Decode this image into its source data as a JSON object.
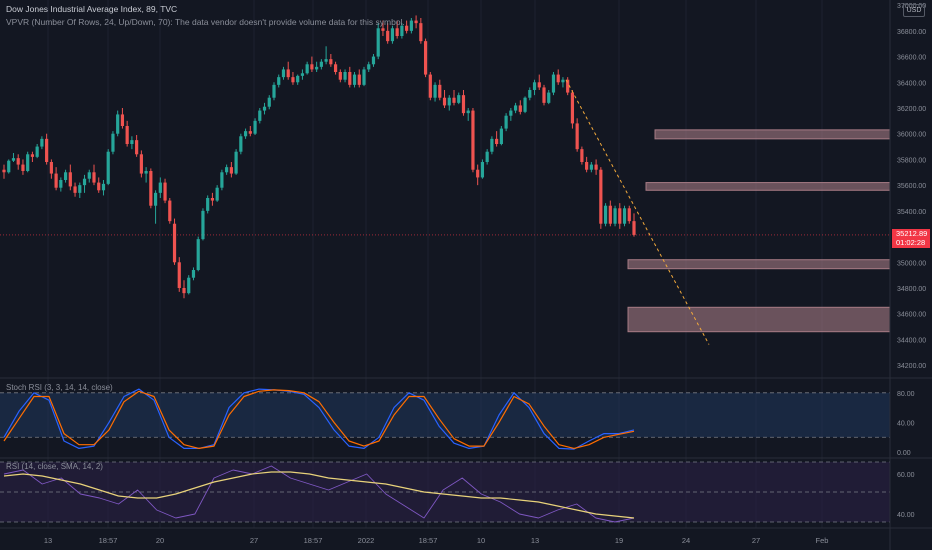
{
  "header": {
    "title": "Dow Jones Industrial Average Index, 89, TVC",
    "vpvr": "VPVR (Number Of Rows, 24, Up/Down, 70): The data vendor doesn't provide volume data for this symbol."
  },
  "currency": "USD",
  "last_price": {
    "value": "35212.89",
    "countdown": "01:02:28"
  },
  "indicators": {
    "stoch_label": "Stoch RSI (3, 3, 14, 14, close)",
    "rsi_label": "RSI (14, close, SMA, 14, 2)"
  },
  "colors": {
    "background": "#131722",
    "up": "#26a69a",
    "down": "#ef5350",
    "zone": "#b2838d",
    "stoch_k": "#2962ff",
    "stoch_d": "#ff6d00",
    "rsi": "#7e57c2",
    "rsi_ma": "#e8d27a",
    "trend": "#f2a93b"
  },
  "chart_data": [
    {
      "type": "candlestick",
      "symbol": "Dow Jones Industrial Average Index",
      "timeframe": "89",
      "y_ticks": [
        "37000.00",
        "36800.00",
        "36600.00",
        "36400.00",
        "36200.00",
        "36000.00",
        "35800.00",
        "35600.00",
        "35400.00",
        "35200.00",
        "35000.00",
        "34800.00",
        "34600.00",
        "34400.00",
        "34200.00"
      ],
      "ylim": [
        34100,
        37040
      ],
      "x_ticks": [
        "13",
        "18:57",
        "20",
        "27",
        "18:57",
        "2022",
        "18:57",
        "10",
        "13",
        "19",
        "24",
        "27",
        "Feb"
      ],
      "zones": [
        [
          35960,
          36030
        ],
        [
          35560,
          35620
        ],
        [
          34950,
          35020
        ],
        [
          34460,
          34650
        ]
      ],
      "trendline": {
        "from": [
          "13",
          36420
        ],
        "to": [
          "24",
          34360
        ]
      },
      "candles": [
        [
          35720,
          35760,
          35650,
          35700
        ],
        [
          35700,
          35800,
          35690,
          35790
        ],
        [
          35790,
          35850,
          35780,
          35810
        ],
        [
          35810,
          35840,
          35720,
          35760
        ],
        [
          35760,
          35800,
          35680,
          35710
        ],
        [
          35710,
          35860,
          35700,
          35840
        ],
        [
          35840,
          35860,
          35780,
          35820
        ],
        [
          35820,
          35920,
          35810,
          35900
        ],
        [
          35900,
          35980,
          35880,
          35960
        ],
        [
          35960,
          36000,
          35760,
          35780
        ],
        [
          35780,
          35800,
          35650,
          35690
        ],
        [
          35690,
          35740,
          35560,
          35580
        ],
        [
          35580,
          35660,
          35550,
          35640
        ],
        [
          35640,
          35720,
          35620,
          35700
        ],
        [
          35700,
          35760,
          35560,
          35590
        ],
        [
          35590,
          35620,
          35510,
          35540
        ],
        [
          35540,
          35620,
          35500,
          35600
        ],
        [
          35600,
          35680,
          35540,
          35650
        ],
        [
          35650,
          35720,
          35620,
          35700
        ],
        [
          35700,
          35760,
          35600,
          35620
        ],
        [
          35620,
          35660,
          35540,
          35560
        ],
        [
          35560,
          35640,
          35520,
          35610
        ],
        [
          35610,
          35880,
          35600,
          35860
        ],
        [
          35860,
          36020,
          35840,
          36000
        ],
        [
          36000,
          36180,
          35980,
          36150
        ],
        [
          36150,
          36200,
          36040,
          36060
        ],
        [
          36060,
          36100,
          35900,
          35920
        ],
        [
          35920,
          35980,
          35880,
          35950
        ],
        [
          35950,
          35990,
          35820,
          35840
        ],
        [
          35840,
          35870,
          35660,
          35690
        ],
        [
          35690,
          35740,
          35620,
          35710
        ],
        [
          35710,
          35730,
          35420,
          35440
        ],
        [
          35440,
          35560,
          35300,
          35540
        ],
        [
          35540,
          35660,
          35500,
          35620
        ],
        [
          35620,
          35650,
          35460,
          35480
        ],
        [
          35480,
          35500,
          35300,
          35320
        ],
        [
          35300,
          35340,
          34980,
          35000
        ],
        [
          35000,
          35040,
          34770,
          34800
        ],
        [
          34800,
          34860,
          34720,
          34760
        ],
        [
          34760,
          34900,
          34750,
          34880
        ],
        [
          34880,
          34960,
          34860,
          34940
        ],
        [
          34940,
          35200,
          34930,
          35180
        ],
        [
          35180,
          35420,
          35170,
          35400
        ],
        [
          35400,
          35520,
          35380,
          35500
        ],
        [
          35500,
          35540,
          35440,
          35480
        ],
        [
          35480,
          35600,
          35470,
          35580
        ],
        [
          35580,
          35720,
          35560,
          35700
        ],
        [
          35700,
          35760,
          35680,
          35740
        ],
        [
          35740,
          35780,
          35660,
          35690
        ],
        [
          35690,
          35880,
          35680,
          35860
        ],
        [
          35860,
          36000,
          35840,
          35980
        ],
        [
          35980,
          36040,
          35960,
          36020
        ],
        [
          36020,
          36060,
          35980,
          36000
        ],
        [
          36000,
          36120,
          35990,
          36100
        ],
        [
          36100,
          36200,
          36080,
          36180
        ],
        [
          36180,
          36240,
          36150,
          36210
        ],
        [
          36210,
          36300,
          36190,
          36280
        ],
        [
          36280,
          36400,
          36260,
          36380
        ],
        [
          36380,
          36460,
          36360,
          36440
        ],
        [
          36440,
          36520,
          36420,
          36500
        ],
        [
          36500,
          36560,
          36420,
          36440
        ],
        [
          36440,
          36480,
          36380,
          36400
        ],
        [
          36400,
          36460,
          36380,
          36450
        ],
        [
          36450,
          36500,
          36420,
          36470
        ],
        [
          36470,
          36560,
          36460,
          36540
        ],
        [
          36540,
          36600,
          36480,
          36500
        ],
        [
          36500,
          36560,
          36480,
          36520
        ],
        [
          36520,
          36580,
          36500,
          36560
        ],
        [
          36560,
          36680,
          36540,
          36580
        ],
        [
          36580,
          36620,
          36520,
          36540
        ],
        [
          36540,
          36560,
          36460,
          36480
        ],
        [
          36480,
          36500,
          36400,
          36420
        ],
        [
          36420,
          36500,
          36400,
          36480
        ],
        [
          36480,
          36520,
          36360,
          36380
        ],
        [
          36380,
          36480,
          36360,
          36460
        ],
        [
          36460,
          36500,
          36360,
          36380
        ],
        [
          36380,
          36520,
          36370,
          36500
        ],
        [
          36500,
          36560,
          36480,
          36540
        ],
        [
          36540,
          36620,
          36520,
          36600
        ],
        [
          36600,
          36860,
          36580,
          36820
        ],
        [
          36820,
          36880,
          36760,
          36800
        ],
        [
          36800,
          36860,
          36700,
          36720
        ],
        [
          36720,
          36840,
          36700,
          36820
        ],
        [
          36820,
          36880,
          36740,
          36760
        ],
        [
          36760,
          36860,
          36740,
          36840
        ],
        [
          36840,
          36880,
          36780,
          36800
        ],
        [
          36800,
          36900,
          36780,
          36880
        ],
        [
          36880,
          36920,
          36820,
          36860
        ],
        [
          36860,
          36900,
          36700,
          36720
        ],
        [
          36720,
          36740,
          36440,
          36460
        ],
        [
          36460,
          36480,
          36260,
          36280
        ],
        [
          36280,
          36400,
          36250,
          36380
        ],
        [
          36380,
          36420,
          36260,
          36280
        ],
        [
          36280,
          36340,
          36200,
          36220
        ],
        [
          36220,
          36300,
          36180,
          36280
        ],
        [
          36280,
          36340,
          36220,
          36240
        ],
        [
          36240,
          36320,
          36230,
          36300
        ],
        [
          36300,
          36340,
          36140,
          36160
        ],
        [
          36160,
          36200,
          36100,
          36180
        ],
        [
          36180,
          36200,
          35700,
          35720
        ],
        [
          35720,
          35760,
          35600,
          35660
        ],
        [
          35660,
          35800,
          35650,
          35780
        ],
        [
          35780,
          35880,
          35760,
          35860
        ],
        [
          35860,
          35980,
          35840,
          35960
        ],
        [
          35960,
          36020,
          35900,
          35920
        ],
        [
          35920,
          36060,
          35910,
          36040
        ],
        [
          36040,
          36160,
          36020,
          36140
        ],
        [
          36140,
          36200,
          36100,
          36180
        ],
        [
          36180,
          36240,
          36160,
          36220
        ],
        [
          36220,
          36260,
          36150,
          36170
        ],
        [
          36170,
          36290,
          36160,
          36280
        ],
        [
          36280,
          36360,
          36260,
          36340
        ],
        [
          36340,
          36420,
          36300,
          36400
        ],
        [
          36400,
          36460,
          36340,
          36360
        ],
        [
          36360,
          36380,
          36220,
          36240
        ],
        [
          36240,
          36340,
          36230,
          36320
        ],
        [
          36320,
          36480,
          36300,
          36460
        ],
        [
          36460,
          36500,
          36380,
          36400
        ],
        [
          36400,
          36440,
          36360,
          36420
        ],
        [
          36420,
          36440,
          36300,
          36320
        ],
        [
          36320,
          36340,
          36040,
          36080
        ],
        [
          36080,
          36120,
          35860,
          35880
        ],
        [
          35880,
          35900,
          35760,
          35780
        ],
        [
          35780,
          35820,
          35700,
          35720
        ],
        [
          35720,
          35780,
          35700,
          35760
        ],
        [
          35760,
          35800,
          35680,
          35720
        ],
        [
          35720,
          35740,
          35260,
          35300
        ],
        [
          35300,
          35460,
          35280,
          35440
        ],
        [
          35440,
          35480,
          35280,
          35300
        ],
        [
          35300,
          35440,
          35280,
          35420
        ],
        [
          35420,
          35460,
          35260,
          35300
        ],
        [
          35300,
          35440,
          35280,
          35420
        ],
        [
          35420,
          35440,
          35300,
          35320
        ],
        [
          35320,
          35380,
          35200,
          35212.89
        ]
      ]
    },
    {
      "type": "line",
      "title": "Stoch RSI (3, 3, 14, 14, close)",
      "y_ticks": [
        "80.00",
        "40.00",
        "0.00"
      ],
      "ylim": [
        -8,
        100
      ],
      "series": [
        {
          "name": "K",
          "values": [
            20,
            55,
            80,
            70,
            15,
            5,
            8,
            40,
            75,
            85,
            70,
            20,
            5,
            5,
            10,
            60,
            80,
            85,
            84,
            82,
            78,
            60,
            30,
            8,
            5,
            20,
            60,
            80,
            70,
            35,
            12,
            5,
            8,
            50,
            80,
            60,
            25,
            5,
            4,
            15,
            25,
            25,
            30
          ]
        },
        {
          "name": "D",
          "values": [
            15,
            45,
            75,
            75,
            25,
            10,
            10,
            30,
            68,
            82,
            75,
            30,
            10,
            5,
            8,
            50,
            75,
            82,
            84,
            83,
            80,
            68,
            40,
            15,
            8,
            15,
            50,
            75,
            75,
            45,
            18,
            8,
            8,
            40,
            75,
            65,
            35,
            10,
            5,
            10,
            20,
            24,
            28
          ]
        }
      ]
    },
    {
      "type": "line",
      "title": "RSI (14, close, SMA, 14, 2)",
      "y_ticks": [
        "60.00",
        "40.00"
      ],
      "ylim": [
        33,
        68
      ],
      "series": [
        {
          "name": "RSI",
          "values": [
            60,
            62,
            55,
            58,
            50,
            48,
            45,
            52,
            42,
            38,
            40,
            58,
            62,
            60,
            64,
            58,
            55,
            52,
            56,
            60,
            50,
            44,
            38,
            52,
            58,
            50,
            46,
            40,
            38,
            42,
            45,
            38,
            36,
            38
          ]
        },
        {
          "name": "RSI MA",
          "values": [
            59,
            60,
            59,
            57,
            55,
            52,
            49,
            48,
            48,
            50,
            53,
            56,
            58,
            60,
            61,
            61,
            60,
            58,
            57,
            56,
            55,
            53,
            51,
            50,
            49,
            48,
            48,
            47,
            46,
            44,
            42,
            40,
            39,
            38
          ]
        }
      ]
    }
  ]
}
